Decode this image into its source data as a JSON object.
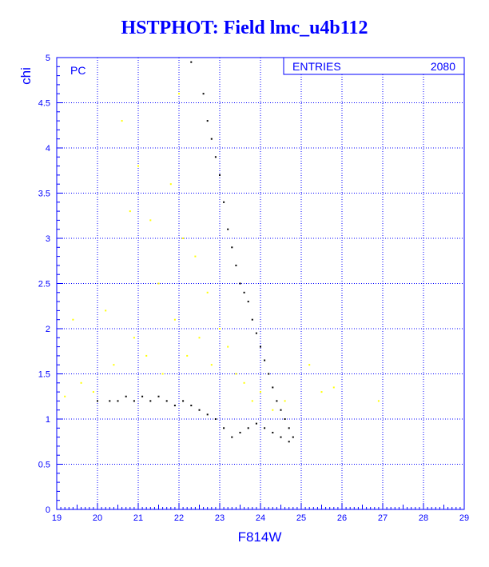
{
  "chart_data": {
    "type": "scatter",
    "title": "HSTPHOT: Field lmc_u4b112",
    "xlabel": "F814W",
    "ylabel": "chi",
    "panel_label": "PC",
    "stats_label": "ENTRIES",
    "stats_value": "2080",
    "xlim": [
      19,
      29
    ],
    "ylim": [
      0,
      5
    ],
    "x_ticks": [
      "19",
      "20",
      "21",
      "22",
      "23",
      "24",
      "25",
      "26",
      "27",
      "28",
      "29"
    ],
    "y_ticks": [
      "0",
      "0.5",
      "1",
      "1.5",
      "2",
      "2.5",
      "3",
      "3.5",
      "4",
      "4.5",
      "5"
    ],
    "grid": true,
    "colors": {
      "axis": "#0000ff",
      "primary_points": "#000000",
      "secondary_points": "#ffff00"
    },
    "series": [
      {
        "color": "black",
        "points": [
          [
            22.3,
            4.95
          ],
          [
            22.6,
            4.6
          ],
          [
            22.7,
            4.3
          ],
          [
            22.8,
            4.1
          ],
          [
            22.9,
            3.9
          ],
          [
            23.0,
            3.7
          ],
          [
            23.1,
            3.4
          ],
          [
            23.2,
            3.1
          ],
          [
            23.3,
            2.9
          ],
          [
            23.4,
            2.7
          ],
          [
            23.5,
            2.5
          ],
          [
            23.6,
            2.4
          ],
          [
            23.7,
            2.3
          ],
          [
            23.8,
            2.1
          ],
          [
            23.9,
            1.95
          ],
          [
            24.0,
            1.8
          ],
          [
            24.1,
            1.65
          ],
          [
            24.2,
            1.5
          ],
          [
            24.3,
            1.35
          ],
          [
            24.4,
            1.2
          ],
          [
            24.5,
            1.1
          ],
          [
            24.6,
            1.0
          ],
          [
            24.7,
            0.9
          ],
          [
            24.8,
            0.8
          ],
          [
            24.7,
            0.75
          ],
          [
            24.5,
            0.8
          ],
          [
            24.3,
            0.85
          ],
          [
            24.1,
            0.9
          ],
          [
            23.9,
            0.95
          ],
          [
            23.7,
            0.9
          ],
          [
            23.5,
            0.85
          ],
          [
            23.3,
            0.8
          ],
          [
            23.1,
            0.9
          ],
          [
            22.9,
            1.0
          ],
          [
            22.7,
            1.05
          ],
          [
            22.5,
            1.1
          ],
          [
            22.3,
            1.15
          ],
          [
            22.1,
            1.2
          ],
          [
            21.9,
            1.15
          ],
          [
            21.7,
            1.2
          ],
          [
            21.5,
            1.25
          ],
          [
            21.3,
            1.2
          ],
          [
            21.1,
            1.25
          ],
          [
            20.9,
            1.2
          ],
          [
            20.7,
            1.25
          ],
          [
            20.5,
            1.2
          ],
          [
            20.3,
            1.2
          ],
          [
            20.0,
            1.2
          ]
        ]
      },
      {
        "color": "yellow",
        "points": [
          [
            19.2,
            1.25
          ],
          [
            19.4,
            2.1
          ],
          [
            19.6,
            1.4
          ],
          [
            19.9,
            1.3
          ],
          [
            20.2,
            2.2
          ],
          [
            20.4,
            1.6
          ],
          [
            20.6,
            4.3
          ],
          [
            20.8,
            3.3
          ],
          [
            20.9,
            1.9
          ],
          [
            21.0,
            3.8
          ],
          [
            21.2,
            1.7
          ],
          [
            21.3,
            3.2
          ],
          [
            21.5,
            2.5
          ],
          [
            21.6,
            1.5
          ],
          [
            21.8,
            3.6
          ],
          [
            21.9,
            2.1
          ],
          [
            22.0,
            4.6
          ],
          [
            22.1,
            3.0
          ],
          [
            22.2,
            1.7
          ],
          [
            22.4,
            2.8
          ],
          [
            22.5,
            1.9
          ],
          [
            22.7,
            2.4
          ],
          [
            22.8,
            1.6
          ],
          [
            23.0,
            2.0
          ],
          [
            23.2,
            1.8
          ],
          [
            23.4,
            1.5
          ],
          [
            23.6,
            1.4
          ],
          [
            23.8,
            1.2
          ],
          [
            24.0,
            1.3
          ],
          [
            24.3,
            1.1
          ],
          [
            24.6,
            1.2
          ],
          [
            25.2,
            1.6
          ],
          [
            25.5,
            1.3
          ],
          [
            25.8,
            1.35
          ],
          [
            26.9,
            1.2
          ]
        ]
      }
    ]
  }
}
